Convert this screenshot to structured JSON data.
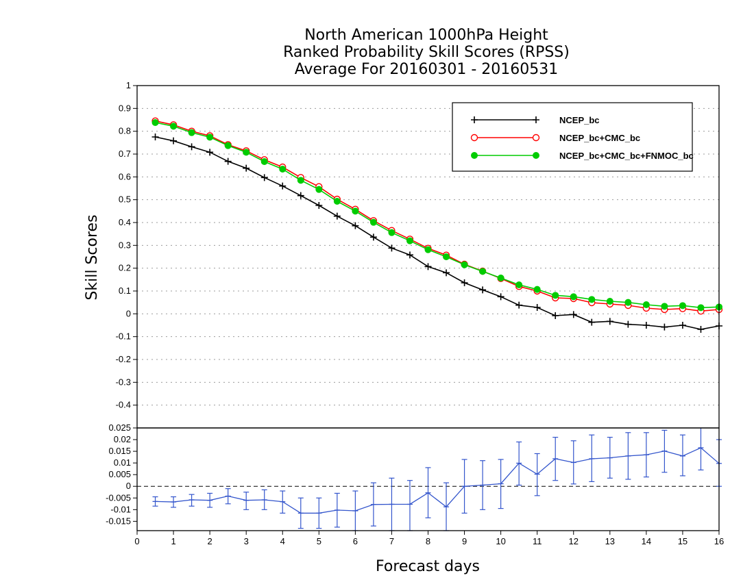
{
  "chart_data": [
    {
      "type": "line",
      "title": [
        "North American 1000hPa Height",
        "Ranked Probability Skill Scores (RPSS)",
        "Average For 20160301 - 20160531"
      ],
      "xlabel": "Forecast days",
      "ylabel": "Skill Scores",
      "xlim": [
        0,
        16
      ],
      "ylim": [
        -0.5,
        1
      ],
      "x_ticks": [
        "0",
        "1",
        "2",
        "3",
        "4",
        "5",
        "6",
        "7",
        "8",
        "9",
        "10",
        "11",
        "12",
        "13",
        "14",
        "15",
        "16"
      ],
      "y_ticks": [
        "-0.4",
        "-0.3",
        "-0.2",
        "-0.1",
        "0",
        "0.1",
        "0.2",
        "0.3",
        "0.4",
        "0.5",
        "0.6",
        "0.7",
        "0.8",
        "0.9",
        "1"
      ],
      "grid": "horizontal dotted",
      "legend_position": "top-right",
      "x": [
        0.5,
        1,
        1.5,
        2,
        2.5,
        3,
        3.5,
        4,
        4.5,
        5,
        5.5,
        6,
        6.5,
        7,
        7.5,
        8,
        8.5,
        9,
        9.5,
        10,
        10.5,
        11,
        11.5,
        12,
        12.5,
        13,
        13.5,
        14,
        14.5,
        15,
        15.5,
        16
      ],
      "series": [
        {
          "name": "NCEP_bc",
          "color": "#000000",
          "marker": "plus",
          "values": [
            0.775,
            0.758,
            0.732,
            0.708,
            0.668,
            0.638,
            0.597,
            0.56,
            0.518,
            0.475,
            0.428,
            0.386,
            0.336,
            0.288,
            0.258,
            0.207,
            0.18,
            0.136,
            0.105,
            0.075,
            0.038,
            0.028,
            -0.008,
            -0.003,
            -0.037,
            -0.033,
            -0.046,
            -0.05,
            -0.058,
            -0.05,
            -0.068,
            -0.053
          ]
        },
        {
          "name": "NCEP_bc+CMC_bc",
          "color": "#ff0000",
          "marker": "open-circle",
          "values": [
            0.845,
            0.828,
            0.8,
            0.78,
            0.741,
            0.714,
            0.675,
            0.643,
            0.597,
            0.557,
            0.502,
            0.458,
            0.408,
            0.365,
            0.327,
            0.287,
            0.257,
            0.217,
            0.187,
            0.155,
            0.12,
            0.1,
            0.07,
            0.067,
            0.049,
            0.043,
            0.037,
            0.025,
            0.019,
            0.023,
            0.012,
            0.019
          ]
        },
        {
          "name": "NCEP_bc+CMC_bc+FNMOC_bc",
          "color": "#00cc00",
          "marker": "filled-circle",
          "values": [
            0.838,
            0.822,
            0.794,
            0.774,
            0.737,
            0.708,
            0.667,
            0.634,
            0.585,
            0.545,
            0.493,
            0.45,
            0.401,
            0.356,
            0.32,
            0.281,
            0.25,
            0.215,
            0.186,
            0.157,
            0.127,
            0.107,
            0.081,
            0.075,
            0.063,
            0.055,
            0.05,
            0.04,
            0.033,
            0.036,
            0.027,
            0.03
          ]
        }
      ]
    },
    {
      "type": "line",
      "xlim": [
        0,
        16
      ],
      "ylim": [
        -0.019,
        0.025
      ],
      "x_ticks": [
        "0",
        "1",
        "2",
        "3",
        "4",
        "5",
        "6",
        "7",
        "8",
        "9",
        "10",
        "11",
        "12",
        "13",
        "14",
        "15",
        "16"
      ],
      "y_ticks": [
        "-0.015",
        "-0.01",
        "-0.005",
        "0",
        "0.005",
        "0.01",
        "0.015",
        "0.02",
        "0.025"
      ],
      "reference_line": 0,
      "x": [
        0.5,
        1,
        1.5,
        2,
        2.5,
        3,
        3.5,
        4,
        4.5,
        5,
        5.5,
        6,
        6.5,
        7,
        7.5,
        8,
        8.5,
        9,
        9.5,
        10,
        10.5,
        11,
        11.5,
        12,
        12.5,
        13,
        13.5,
        14,
        14.5,
        15,
        15.5,
        16
      ],
      "series": [
        {
          "color": "#3355cc",
          "values": [
            -0.0065,
            -0.0067,
            -0.0058,
            -0.006,
            -0.0042,
            -0.006,
            -0.0058,
            -0.0066,
            -0.0115,
            -0.0115,
            -0.0102,
            -0.0105,
            -0.0078,
            -0.0077,
            -0.0077,
            -0.0028,
            -0.0088,
            0.0,
            0.0005,
            0.0011,
            0.0099,
            0.0052,
            0.0118,
            0.0102,
            0.0118,
            0.0122,
            0.013,
            0.0135,
            0.0151,
            0.013,
            0.0165,
            0.0098
          ],
          "error_low": [
            -0.0085,
            -0.009,
            -0.0085,
            -0.009,
            -0.0075,
            -0.01,
            -0.01,
            -0.0115,
            -0.018,
            -0.018,
            -0.0175,
            -0.019,
            -0.017,
            -0.019,
            -0.019,
            -0.0135,
            -0.019,
            -0.0115,
            -0.01,
            -0.0095,
            0.0005,
            -0.004,
            0.0025,
            0.001,
            0.002,
            0.0035,
            0.003,
            0.004,
            0.006,
            0.0045,
            0.007,
            0.0
          ],
          "error_high": [
            -0.0045,
            -0.0045,
            -0.0035,
            -0.003,
            -0.001,
            -0.0025,
            -0.0015,
            -0.002,
            -0.005,
            -0.005,
            -0.003,
            -0.002,
            0.0015,
            0.0035,
            0.0025,
            0.008,
            0.0015,
            0.0115,
            0.011,
            0.0115,
            0.019,
            0.014,
            0.021,
            0.0195,
            0.022,
            0.021,
            0.023,
            0.023,
            0.024,
            0.022,
            0.026,
            0.02
          ]
        }
      ]
    }
  ]
}
